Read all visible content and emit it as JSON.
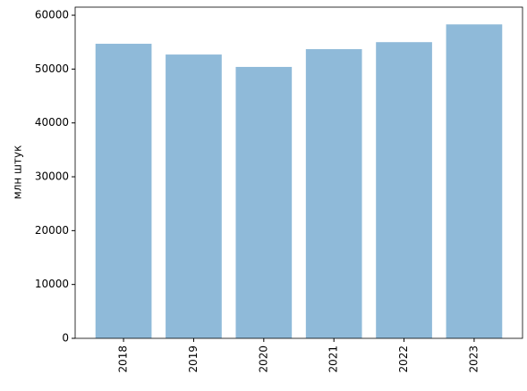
{
  "chart_data": {
    "type": "bar",
    "ylabel": "млн штук",
    "categories": [
      "2018",
      "2019",
      "2020",
      "2021",
      "2022",
      "2023"
    ],
    "values": [
      54700,
      52700,
      50400,
      53700,
      55000,
      58300
    ],
    "color": "#8fbad9",
    "ylim": [
      0,
      61500
    ],
    "yticks": [
      0,
      10000,
      20000,
      30000,
      40000,
      50000,
      60000
    ]
  }
}
